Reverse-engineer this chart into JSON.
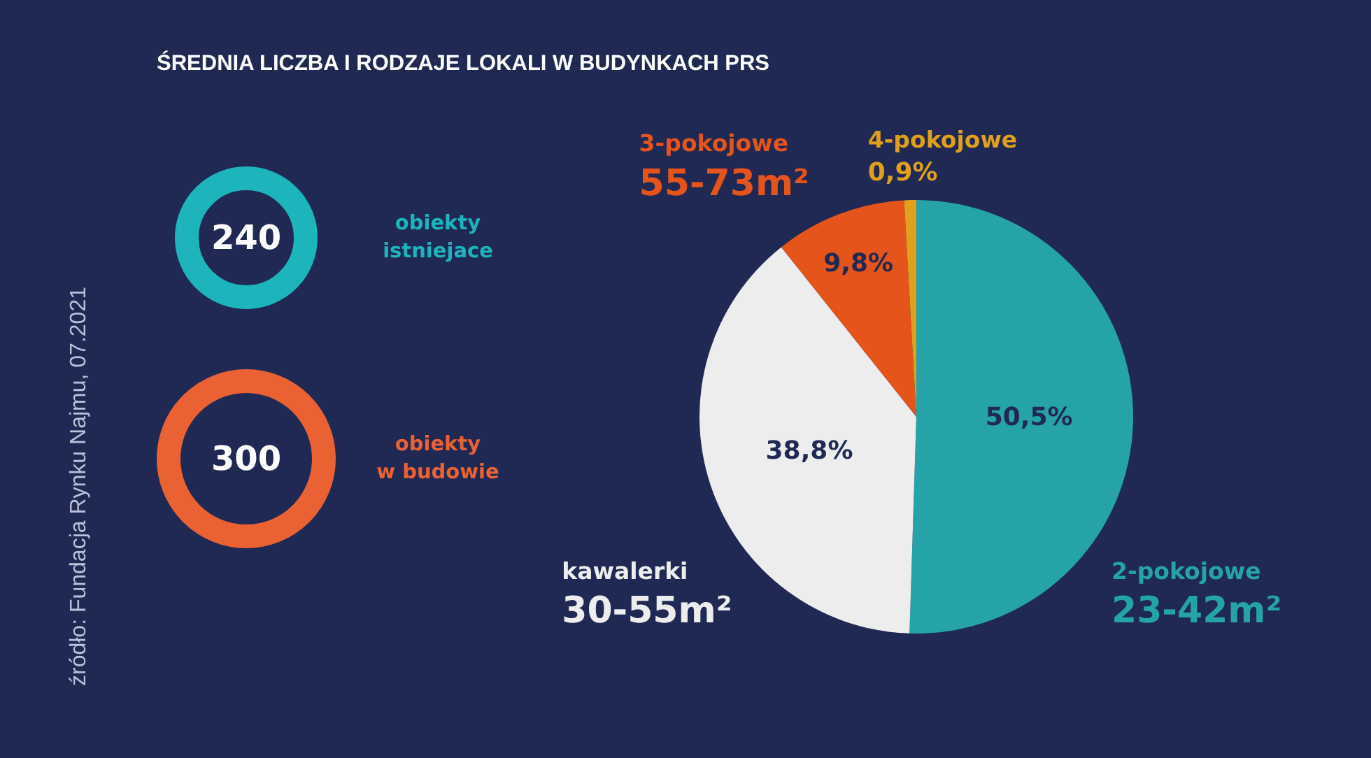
{
  "chart_data": [
    {
      "type": "other",
      "title": "ŚREDNIA LICZBA I RODZAJE LOKALI W BUDYNKACH PRS",
      "categories": [
        "obiekty istniejace",
        "obiekty w budowie"
      ],
      "values": [
        240,
        300
      ],
      "colors": [
        "#1db4bc",
        "#ea6234"
      ],
      "data_labels": true,
      "annotations": [
        "źródło: Fundacja Rynku Najmu, 07.2021"
      ]
    },
    {
      "type": "pie",
      "categories": [
        "2-pokojowe",
        "kawalerki",
        "3-pokojowe",
        "4-pokojowe"
      ],
      "values": [
        50.5,
        38.8,
        9.8,
        0.9
      ],
      "colors": [
        "#26a2a9",
        "#ededed",
        "#e5541b",
        "#e09f1c"
      ],
      "value_labels": [
        "50,5%",
        "38,8%",
        "9,8%",
        "0,9%"
      ],
      "annotations": [
        {
          "text": "23-42m²",
          "x": "2-pokojowe"
        },
        {
          "text": "30-55m²",
          "x": "kawalerki"
        },
        {
          "text": "55-73m²",
          "x": "3-pokojowe"
        }
      ]
    }
  ]
}
